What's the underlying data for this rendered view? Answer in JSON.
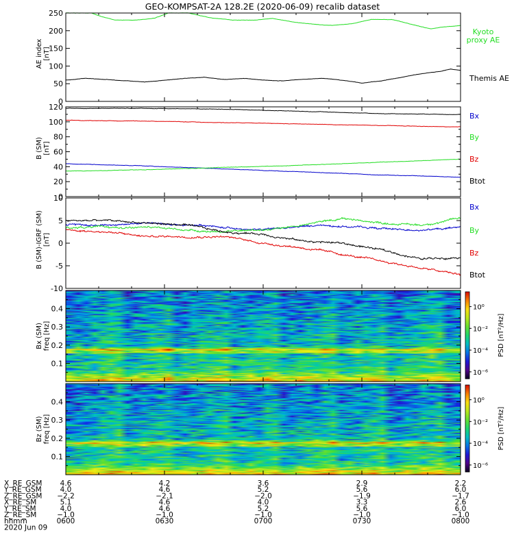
{
  "title": "GEO-KOMPSAT-2A 128.2E (2020-06-09) recalib dataset",
  "colors": {
    "black": "#000000",
    "red": "#e00000",
    "green": "#22dd22",
    "blue": "#0000cc"
  },
  "chart_data": [
    {
      "type": "line",
      "ylabel_lines": [
        "AE index",
        "[nT]"
      ],
      "ylim": [
        0,
        250
      ],
      "yticks": [
        0,
        50,
        100,
        150,
        200,
        250
      ],
      "xlim": [
        6.0,
        8.0
      ],
      "series": [
        {
          "name": "Kyoto proxy AE",
          "label_lines": [
            "Kyoto",
            "proxy AE"
          ],
          "color": "#22dd22",
          "x": [
            6.0,
            6.13,
            6.18,
            6.25,
            6.35,
            6.45,
            6.52,
            6.62,
            6.75,
            6.85,
            6.95,
            7.05,
            7.15,
            7.25,
            7.35,
            7.45,
            7.55,
            7.65,
            7.75,
            7.85,
            7.9,
            8.0
          ],
          "values": [
            250,
            250,
            240,
            230,
            230,
            235,
            250,
            250,
            235,
            230,
            230,
            235,
            225,
            218,
            215,
            220,
            232,
            232,
            218,
            205,
            210,
            215
          ]
        },
        {
          "name": "Themis AE",
          "label_lines": [
            "Themis AE"
          ],
          "color": "#000000",
          "x": [
            6.0,
            6.1,
            6.2,
            6.3,
            6.4,
            6.5,
            6.6,
            6.7,
            6.8,
            6.9,
            7.0,
            7.1,
            7.2,
            7.3,
            7.4,
            7.5,
            7.6,
            7.7,
            7.8,
            7.9,
            7.95,
            8.0
          ],
          "values": [
            60,
            65,
            62,
            58,
            55,
            60,
            65,
            68,
            62,
            65,
            60,
            58,
            62,
            65,
            60,
            52,
            58,
            68,
            78,
            85,
            92,
            88
          ]
        }
      ]
    },
    {
      "type": "line",
      "ylabel_lines": [
        "B (SM)",
        "[nT]"
      ],
      "ylim": [
        0,
        120
      ],
      "yticks": [
        0,
        10,
        20,
        30,
        40,
        50,
        60,
        70,
        80,
        90,
        100,
        110,
        120
      ],
      "ytick_labels": [
        0,
        20,
        40,
        60,
        80,
        100,
        120
      ],
      "xlim": [
        6.0,
        8.0
      ],
      "series": [
        {
          "name": "Bx",
          "label_lines": [
            "Bx"
          ],
          "color": "#0000cc",
          "x": [
            6.0,
            6.4,
            6.8,
            7.2,
            7.6,
            8.0
          ],
          "values": [
            44,
            41,
            37,
            33,
            29,
            26
          ]
        },
        {
          "name": "By",
          "label_lines": [
            "By"
          ],
          "color": "#22dd22",
          "x": [
            6.0,
            6.4,
            6.8,
            7.2,
            7.6,
            8.0
          ],
          "values": [
            34,
            36,
            39,
            42,
            46,
            50
          ]
        },
        {
          "name": "Bz",
          "label_lines": [
            "Bz"
          ],
          "color": "#e00000",
          "x": [
            6.0,
            6.4,
            6.8,
            7.2,
            7.6,
            8.0
          ],
          "values": [
            102,
            101,
            99,
            97,
            95,
            93
          ]
        },
        {
          "name": "Btot",
          "label_lines": [
            "Btot"
          ],
          "color": "#000000",
          "x": [
            6.0,
            6.4,
            6.8,
            7.2,
            7.6,
            8.0
          ],
          "values": [
            118,
            118,
            117,
            114,
            111,
            110
          ]
        }
      ]
    },
    {
      "type": "line",
      "ylabel_lines": [
        "B (SM)-IGRF (SM)",
        "[nT]"
      ],
      "ylim": [
        -10,
        10
      ],
      "yticks": [
        -10,
        -5,
        0,
        5,
        10
      ],
      "xlim": [
        6.0,
        8.0
      ],
      "series": [
        {
          "name": "Bx",
          "label_lines": [
            "Bx"
          ],
          "color": "#0000cc",
          "x": [
            6.0,
            6.2,
            6.4,
            6.6,
            6.8,
            7.0,
            7.15,
            7.3,
            7.5,
            7.7,
            7.85,
            8.0
          ],
          "values": [
            4,
            4,
            4.5,
            4,
            3.5,
            3,
            3.5,
            4,
            3.5,
            3,
            3,
            3.5
          ]
        },
        {
          "name": "By",
          "label_lines": [
            "By"
          ],
          "color": "#22dd22",
          "x": [
            6.0,
            6.2,
            6.4,
            6.6,
            6.8,
            7.0,
            7.2,
            7.4,
            7.6,
            7.8,
            8.0
          ],
          "values": [
            3.5,
            3.5,
            3.5,
            3,
            2.5,
            3,
            4,
            5.5,
            4.5,
            4,
            5.5
          ]
        },
        {
          "name": "Bz",
          "label_lines": [
            "Bz"
          ],
          "color": "#e00000",
          "x": [
            6.0,
            6.2,
            6.4,
            6.6,
            6.8,
            7.0,
            7.2,
            7.4,
            7.6,
            7.8,
            8.0
          ],
          "values": [
            3,
            2.5,
            1.5,
            1.5,
            1.5,
            0,
            -1,
            -2.5,
            -4,
            -5.5,
            -7
          ]
        },
        {
          "name": "Btot",
          "label_lines": [
            "Btot"
          ],
          "color": "#000000",
          "x": [
            6.0,
            6.2,
            6.4,
            6.6,
            6.8,
            7.0,
            7.2,
            7.4,
            7.6,
            7.8,
            8.0
          ],
          "values": [
            5,
            5,
            4.5,
            4,
            2.5,
            2,
            0.5,
            0,
            -1.5,
            -3.5,
            -3
          ]
        }
      ]
    },
    {
      "type": "heatmap",
      "ylabel_lines": [
        "Bx (SM)",
        "freq [Hz]"
      ],
      "ylim": [
        0,
        0.5
      ],
      "yticks": [
        0.1,
        0.2,
        0.3,
        0.4
      ],
      "xlim": [
        6.0,
        8.0
      ],
      "colorbar_label": "PSD [nT²/Hz]",
      "colorbar_ticks": [
        "10⁰",
        "10⁻²",
        "10⁻⁴",
        "10⁻⁶"
      ]
    },
    {
      "type": "heatmap",
      "ylabel_lines": [
        "Bz (SM)",
        "freq [Hz]"
      ],
      "ylim": [
        0,
        0.5
      ],
      "yticks": [
        0.1,
        0.2,
        0.3,
        0.4
      ],
      "xlim": [
        6.0,
        8.0
      ],
      "colorbar_label": "PSD [nT²/Hz]",
      "colorbar_ticks": [
        "10⁰",
        "10⁻²",
        "10⁻⁴",
        "10⁻⁶"
      ]
    }
  ],
  "orbit_table": {
    "x": [
      6.0,
      6.5,
      7.0,
      7.5,
      8.0
    ],
    "rows": [
      {
        "label": "X_RE_GSM",
        "values": [
          "4.6",
          "4.2",
          "3.6",
          "2.9",
          "2.2"
        ]
      },
      {
        "label": "Y_RE_GSM",
        "values": [
          "4.0",
          "4.6",
          "5.2",
          "5.6",
          "6.0"
        ]
      },
      {
        "label": "Z_RE_GSM",
        "values": [
          "−2.2",
          "−2.1",
          "−2.0",
          "−1.9",
          "−1.7"
        ]
      },
      {
        "label": "X_RE_SM",
        "values": [
          "5.1",
          "4.6",
          "4.0",
          "3.3",
          "2.6"
        ]
      },
      {
        "label": "Y_RE_SM",
        "values": [
          "4.0",
          "4.6",
          "5.2",
          "5.6",
          "6.0"
        ]
      },
      {
        "label": "Z_RE_SM",
        "values": [
          "−1.0",
          "−1.0",
          "−1.0",
          "−1.0",
          "−1.0"
        ]
      },
      {
        "label": "hhmm",
        "values": [
          "0600",
          "0630",
          "0700",
          "0730",
          "0800"
        ]
      }
    ],
    "date": "2020 Jun 09"
  }
}
